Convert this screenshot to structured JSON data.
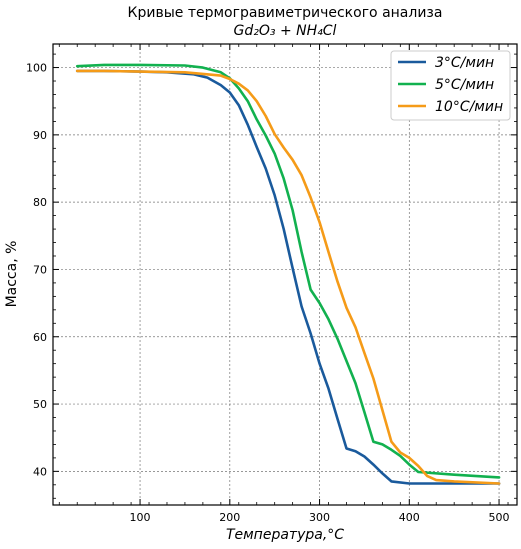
{
  "chart_data": {
    "type": "line",
    "title": "Кривые термогравиметрического анализа",
    "subtitle": "Gd₂O₃ + NH₄Cl",
    "xlabel": "Температура,°C",
    "ylabel": "Масса, %",
    "xlim": [
      3,
      520
    ],
    "ylim": [
      35,
      103.5
    ],
    "xticks": [
      100,
      200,
      300,
      400,
      500
    ],
    "yticks": [
      40,
      50,
      60,
      70,
      80,
      90,
      100
    ],
    "grid": true,
    "legend_position": "top-right",
    "series": [
      {
        "name": "3°C/мин",
        "color": "#1a5a9c",
        "points": [
          [
            30,
            99.5
          ],
          [
            60,
            99.5
          ],
          [
            100,
            99.4
          ],
          [
            130,
            99.3
          ],
          [
            160,
            99.0
          ],
          [
            175,
            98.5
          ],
          [
            190,
            97.4
          ],
          [
            200,
            96.3
          ],
          [
            210,
            94.4
          ],
          [
            220,
            91.5
          ],
          [
            230,
            88.2
          ],
          [
            240,
            85.0
          ],
          [
            250,
            81.0
          ],
          [
            260,
            76.0
          ],
          [
            270,
            70.2
          ],
          [
            280,
            64.5
          ],
          [
            290,
            60.5
          ],
          [
            300,
            56.0
          ],
          [
            310,
            52.3
          ],
          [
            320,
            47.8
          ],
          [
            330,
            43.4
          ],
          [
            340,
            43.0
          ],
          [
            350,
            42.2
          ],
          [
            360,
            41.0
          ],
          [
            370,
            39.7
          ],
          [
            380,
            38.5
          ],
          [
            400,
            38.2
          ],
          [
            450,
            38.2
          ],
          [
            500,
            38.2
          ]
        ]
      },
      {
        "name": "5°C/мин",
        "color": "#12b14f",
        "points": [
          [
            30,
            100.2
          ],
          [
            60,
            100.4
          ],
          [
            100,
            100.4
          ],
          [
            150,
            100.3
          ],
          [
            170,
            100.0
          ],
          [
            190,
            99.3
          ],
          [
            200,
            98.4
          ],
          [
            210,
            96.9
          ],
          [
            220,
            95.0
          ],
          [
            230,
            92.3
          ],
          [
            240,
            89.9
          ],
          [
            250,
            87.2
          ],
          [
            260,
            83.5
          ],
          [
            270,
            78.8
          ],
          [
            280,
            72.6
          ],
          [
            290,
            67.0
          ],
          [
            300,
            65.0
          ],
          [
            310,
            62.6
          ],
          [
            320,
            59.7
          ],
          [
            330,
            56.4
          ],
          [
            340,
            53.1
          ],
          [
            350,
            48.8
          ],
          [
            360,
            44.4
          ],
          [
            370,
            44.0
          ],
          [
            380,
            43.2
          ],
          [
            390,
            42.3
          ],
          [
            400,
            41.0
          ],
          [
            410,
            39.9
          ],
          [
            450,
            39.5
          ],
          [
            500,
            39.1
          ]
        ]
      },
      {
        "name": "10°C/мин",
        "color": "#f59b18",
        "points": [
          [
            30,
            99.5
          ],
          [
            60,
            99.5
          ],
          [
            100,
            99.4
          ],
          [
            150,
            99.3
          ],
          [
            190,
            98.8
          ],
          [
            200,
            98.3
          ],
          [
            210,
            97.6
          ],
          [
            220,
            96.6
          ],
          [
            230,
            95.0
          ],
          [
            240,
            92.8
          ],
          [
            250,
            90.1
          ],
          [
            260,
            88.1
          ],
          [
            270,
            86.3
          ],
          [
            280,
            84.0
          ],
          [
            290,
            80.7
          ],
          [
            300,
            77.0
          ],
          [
            310,
            72.6
          ],
          [
            320,
            68.2
          ],
          [
            330,
            64.3
          ],
          [
            340,
            61.4
          ],
          [
            350,
            57.6
          ],
          [
            360,
            53.8
          ],
          [
            370,
            49.1
          ],
          [
            380,
            44.4
          ],
          [
            390,
            42.8
          ],
          [
            400,
            42.0
          ],
          [
            410,
            40.8
          ],
          [
            420,
            39.3
          ],
          [
            430,
            38.7
          ],
          [
            450,
            38.5
          ],
          [
            500,
            38.2
          ]
        ]
      }
    ]
  }
}
